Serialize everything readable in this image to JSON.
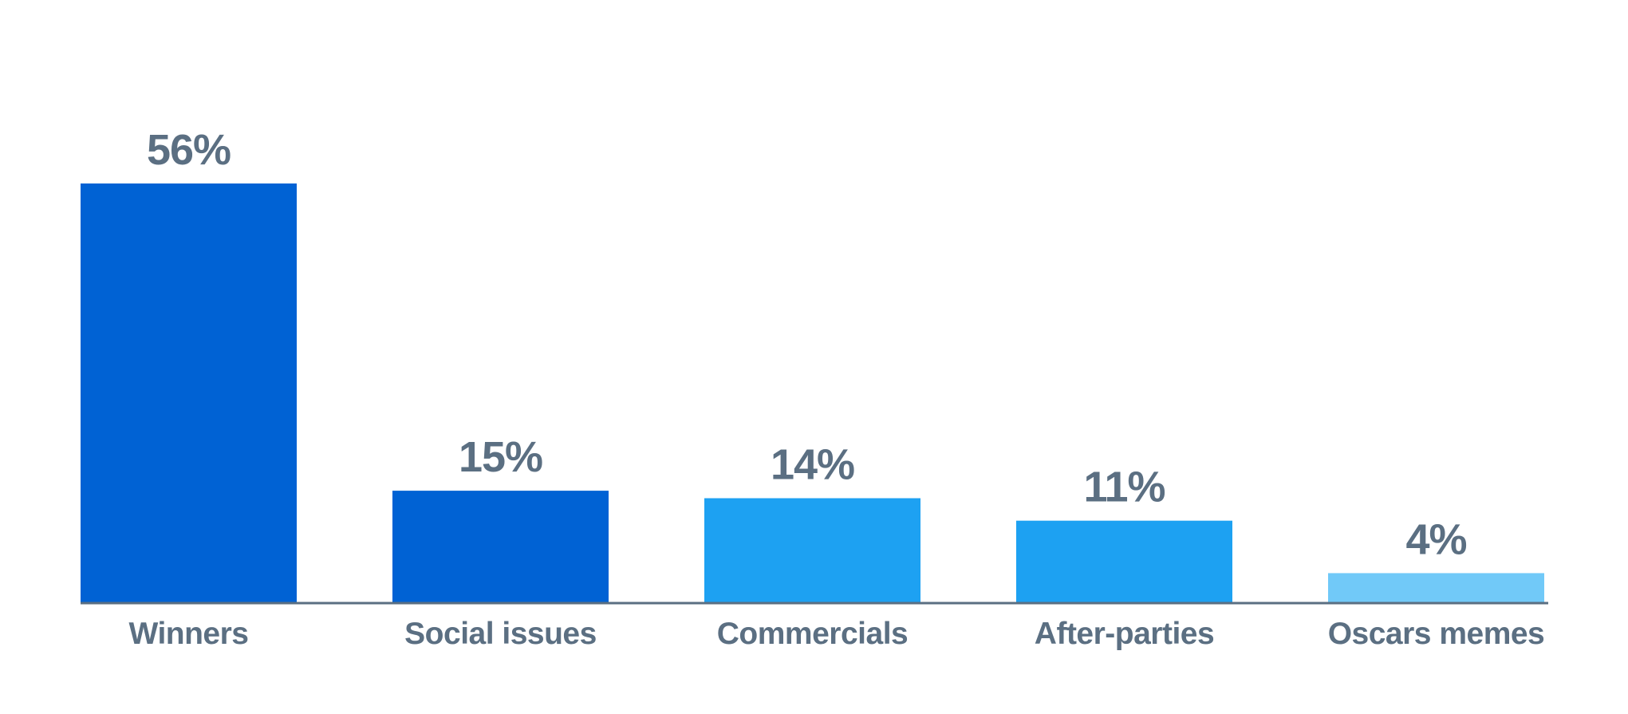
{
  "chart_data": {
    "type": "bar",
    "categories": [
      "Winners",
      "Social issues",
      "Commercials",
      "After-parties",
      "Oscars memes"
    ],
    "values": [
      56,
      15,
      14,
      11,
      4
    ],
    "value_labels": [
      "56%",
      "15%",
      "14%",
      "11%",
      "4%"
    ],
    "unit": "%",
    "bar_colors": [
      "#0062d4",
      "#0062d4",
      "#1da1f2",
      "#1da1f2",
      "#71c9f8"
    ],
    "title": "",
    "xlabel": "",
    "ylabel": "",
    "ylim": [
      0,
      56
    ],
    "grid": false,
    "legend": "none"
  },
  "colors": {
    "axis": "#5b6f82",
    "label_text": "#5b6f82",
    "background": "#ffffff"
  }
}
